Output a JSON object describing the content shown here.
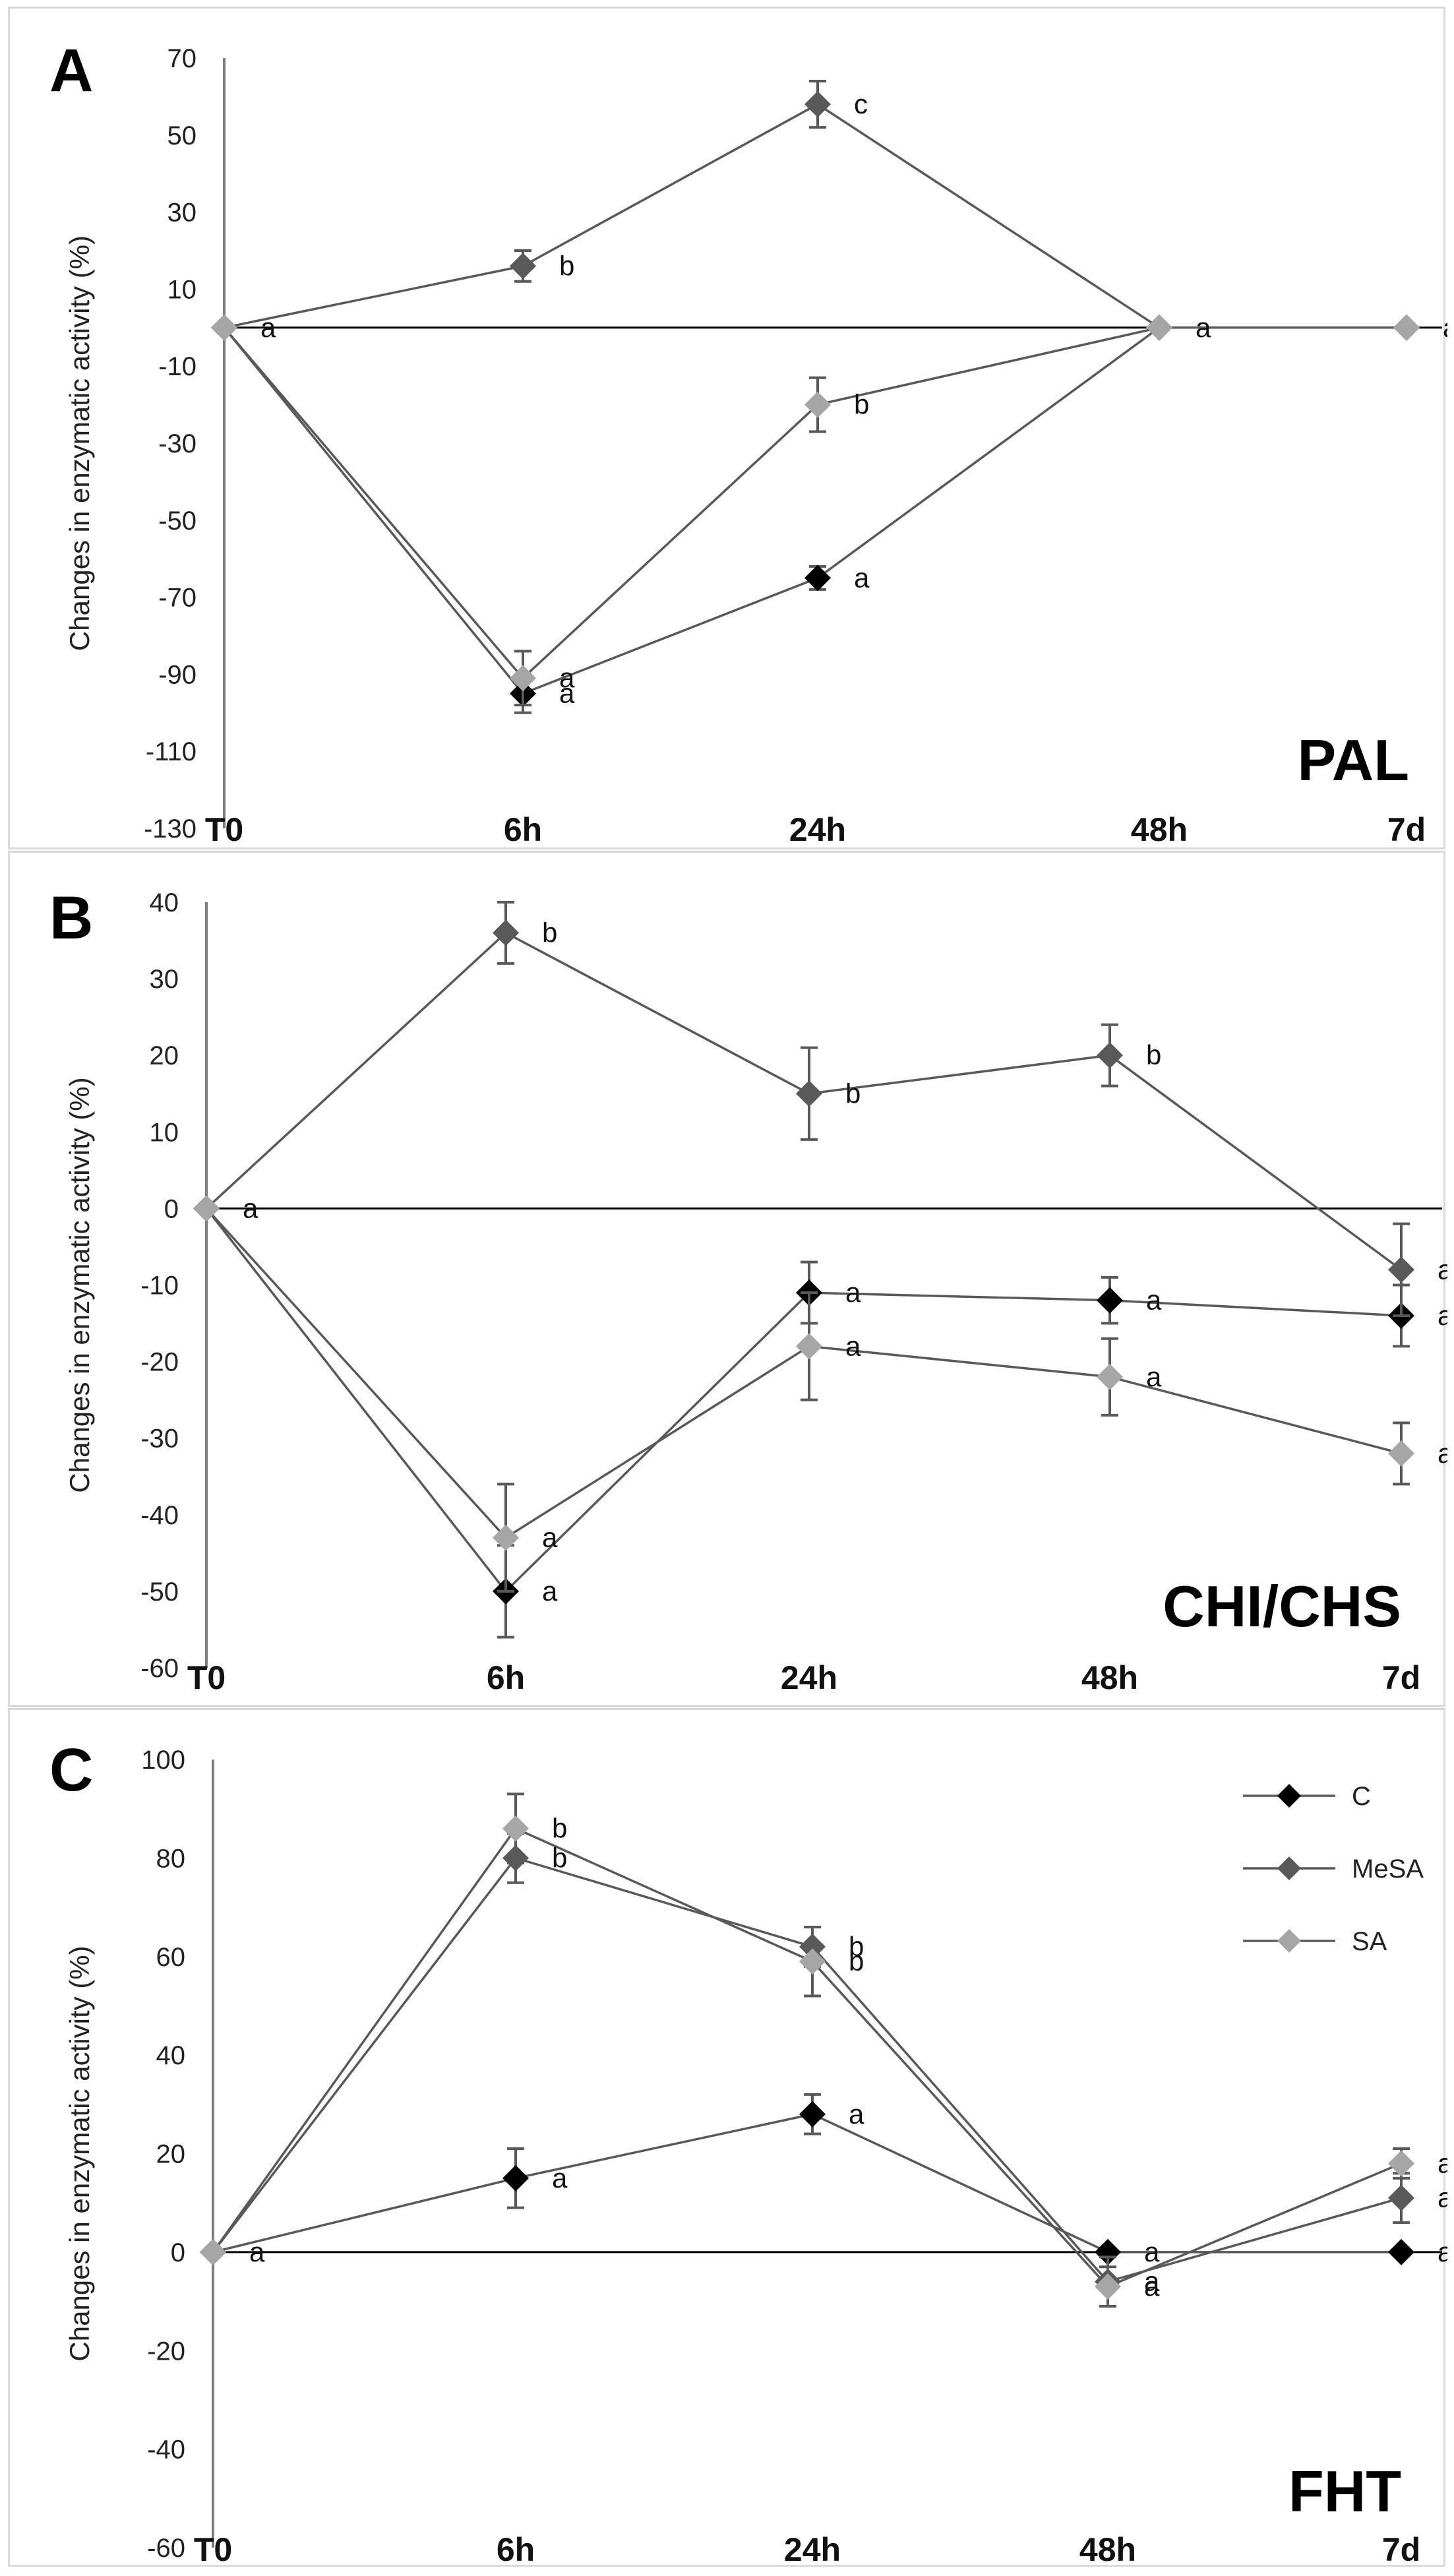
{
  "colors": {
    "C": "#000000",
    "MeSA": "#595959",
    "SA": "#a6a6a6",
    "axis": "#7f7f7f",
    "zero": "#000000",
    "errorbar": "#595959"
  },
  "chart_data": [
    {
      "type": "line",
      "panel": "A",
      "title": "PAL",
      "xlabel": "",
      "ylabel": "Changes in enzymatic activity (%)",
      "categories": [
        "T0",
        "6h",
        "24h",
        "48h",
        "7d"
      ],
      "ylim": [
        -130,
        70
      ],
      "yticks": [
        70,
        50,
        30,
        10,
        -10,
        -30,
        -50,
        -70,
        -90,
        -110,
        -130
      ],
      "legend": false,
      "series": [
        {
          "name": "C",
          "values": [
            0,
            -95,
            -65,
            0,
            0
          ],
          "errors": [
            0,
            5,
            3,
            0,
            0
          ],
          "letters": [
            "a",
            "a",
            "a",
            "a",
            "a"
          ]
        },
        {
          "name": "MeSA",
          "values": [
            0,
            16,
            58,
            0,
            0
          ],
          "errors": [
            0,
            4,
            6,
            0,
            0
          ],
          "letters": [
            "",
            "b",
            "c",
            "",
            ""
          ]
        },
        {
          "name": "SA",
          "values": [
            0,
            -91,
            -20,
            0,
            0
          ],
          "errors": [
            0,
            7,
            7,
            0,
            0
          ],
          "letters": [
            "",
            "a",
            "b",
            "",
            ""
          ]
        }
      ]
    },
    {
      "type": "line",
      "panel": "B",
      "title": "CHI/CHS",
      "xlabel": "",
      "ylabel": "Changes in enzymatic activity (%)",
      "categories": [
        "T0",
        "6h",
        "24h",
        "48h",
        "7d"
      ],
      "ylim": [
        -60,
        40
      ],
      "yticks": [
        40,
        30,
        20,
        10,
        0,
        -10,
        -20,
        -30,
        -40,
        -50,
        -60
      ],
      "legend": false,
      "series": [
        {
          "name": "C",
          "values": [
            0,
            -50,
            -11,
            -12,
            -14
          ],
          "errors": [
            0,
            6,
            4,
            3,
            4
          ],
          "letters": [
            "a",
            "a",
            "a",
            "a",
            "a"
          ]
        },
        {
          "name": "MeSA",
          "values": [
            0,
            36,
            15,
            20,
            -8
          ],
          "errors": [
            0,
            4,
            6,
            4,
            6
          ],
          "letters": [
            "",
            "b",
            "b",
            "b",
            "a"
          ]
        },
        {
          "name": "SA",
          "values": [
            0,
            -43,
            -18,
            -22,
            -32
          ],
          "errors": [
            0,
            7,
            7,
            5,
            4
          ],
          "letters": [
            "",
            "a",
            "a",
            "a",
            "a"
          ]
        }
      ]
    },
    {
      "type": "line",
      "panel": "C",
      "title": "FHT",
      "xlabel": "",
      "ylabel": "Changes in enzymatic activity (%)",
      "categories": [
        "T0",
        "6h",
        "24h",
        "48h",
        "7d"
      ],
      "ylim": [
        -60,
        100
      ],
      "yticks": [
        100,
        80,
        60,
        40,
        20,
        0,
        -20,
        -40,
        -60
      ],
      "legend": true,
      "legend_position": "top-right",
      "series": [
        {
          "name": "C",
          "values": [
            0,
            15,
            28,
            0,
            0
          ],
          "errors": [
            0,
            6,
            4,
            0,
            0
          ],
          "letters": [
            "a",
            "a",
            "a",
            "a",
            "a"
          ]
        },
        {
          "name": "MeSA",
          "values": [
            0,
            80,
            62,
            -6,
            11
          ],
          "errors": [
            0,
            5,
            4,
            5,
            5
          ],
          "letters": [
            "",
            "b",
            "b",
            "a",
            "a"
          ]
        },
        {
          "name": "SA",
          "values": [
            0,
            86,
            59,
            -7,
            18
          ],
          "errors": [
            0,
            7,
            7,
            4,
            3
          ],
          "letters": [
            "",
            "b",
            "b",
            "a",
            "a"
          ]
        }
      ]
    }
  ]
}
